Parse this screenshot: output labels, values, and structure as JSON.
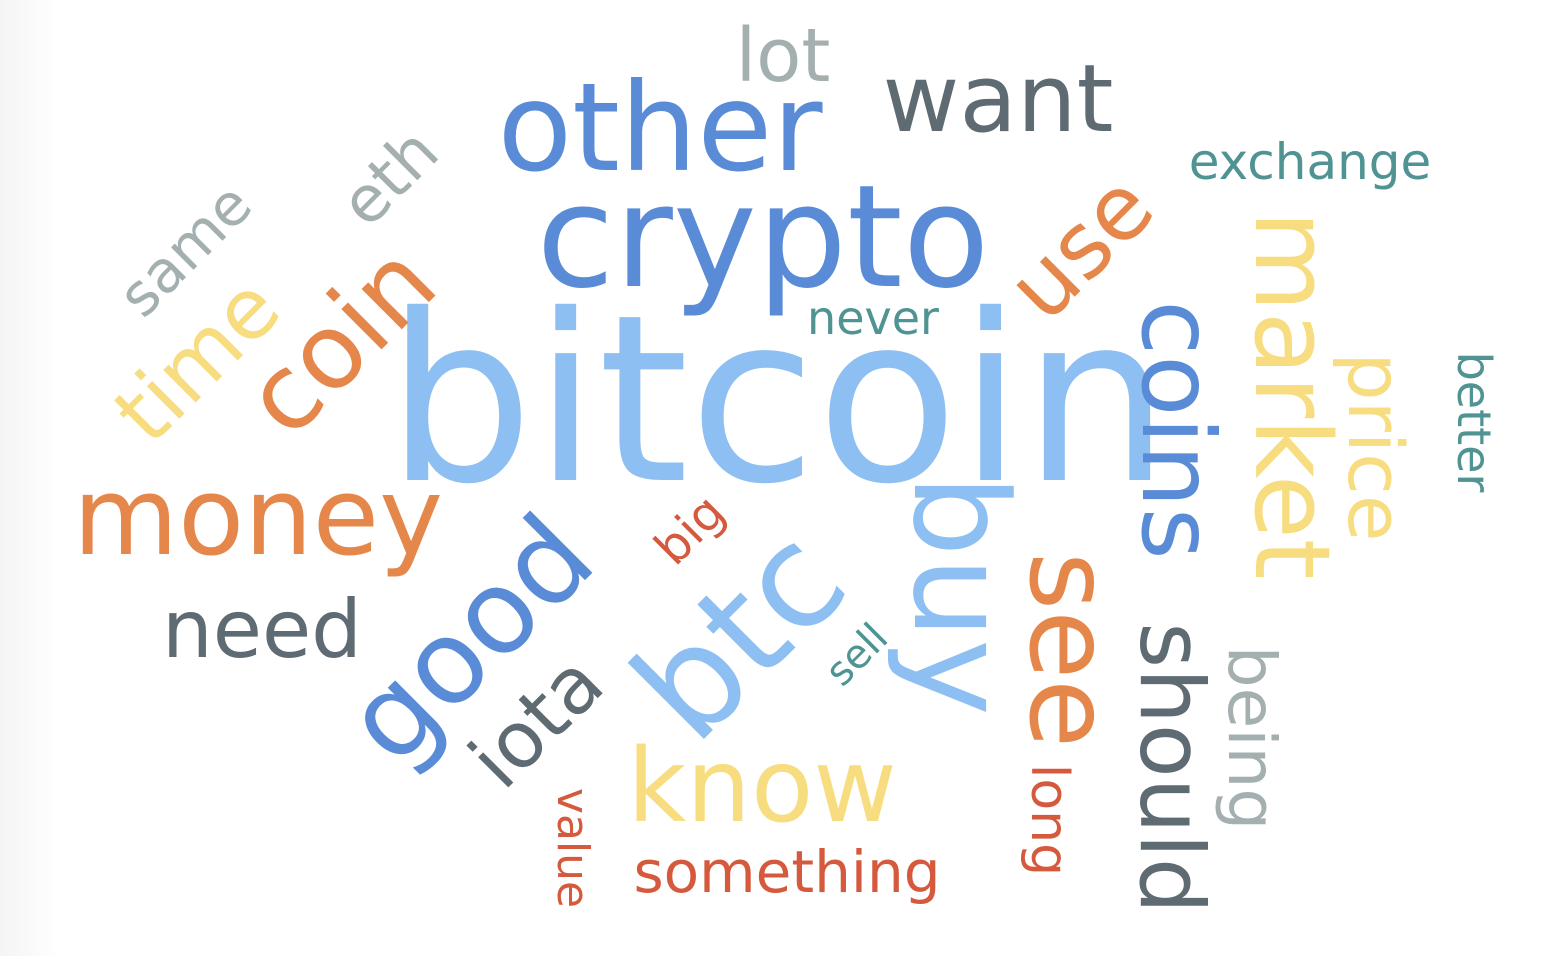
{
  "palette": {
    "light_blue": "#8ebff2",
    "blue": "#5a8bd6",
    "orange": "#e5874a",
    "yellow": "#f7dd7f",
    "slate": "#5f6b72",
    "gray": "#a4b0b0",
    "teal": "#4f9393",
    "red": "#d55a3d"
  },
  "words": [
    {
      "key": "bitcoin",
      "text": "bitcoin",
      "color": "light_blue"
    },
    {
      "key": "crypto",
      "text": "crypto",
      "color": "blue"
    },
    {
      "key": "other",
      "text": "other",
      "color": "blue"
    },
    {
      "key": "want",
      "text": "want",
      "color": "slate"
    },
    {
      "key": "lot",
      "text": "lot",
      "color": "gray"
    },
    {
      "key": "exchange",
      "text": "exchange",
      "color": "teal"
    },
    {
      "key": "money",
      "text": "money",
      "color": "orange"
    },
    {
      "key": "coin",
      "text": "coin",
      "color": "orange"
    },
    {
      "key": "time",
      "text": "time",
      "color": "yellow"
    },
    {
      "key": "same",
      "text": "same",
      "color": "gray"
    },
    {
      "key": "eth",
      "text": "eth",
      "color": "gray"
    },
    {
      "key": "need",
      "text": "need",
      "color": "slate"
    },
    {
      "key": "good",
      "text": "good",
      "color": "blue"
    },
    {
      "key": "iota",
      "text": "iota",
      "color": "slate"
    },
    {
      "key": "btc",
      "text": "btc",
      "color": "light_blue"
    },
    {
      "key": "big",
      "text": "big",
      "color": "red"
    },
    {
      "key": "sell",
      "text": "sell",
      "color": "teal"
    },
    {
      "key": "buy",
      "text": "buy",
      "color": "light_blue"
    },
    {
      "key": "know",
      "text": "know",
      "color": "yellow"
    },
    {
      "key": "something",
      "text": "something",
      "color": "red"
    },
    {
      "key": "value",
      "text": "value",
      "color": "red"
    },
    {
      "key": "never",
      "text": "never",
      "color": "teal"
    },
    {
      "key": "use",
      "text": "use",
      "color": "orange"
    },
    {
      "key": "see",
      "text": "see",
      "color": "orange"
    },
    {
      "key": "long",
      "text": "long",
      "color": "red"
    },
    {
      "key": "coins",
      "text": "coins",
      "color": "blue"
    },
    {
      "key": "should",
      "text": "should",
      "color": "slate"
    },
    {
      "key": "market",
      "text": "market",
      "color": "yellow"
    },
    {
      "key": "being",
      "text": "being",
      "color": "gray"
    },
    {
      "key": "price",
      "text": "price",
      "color": "yellow"
    },
    {
      "key": "better",
      "text": "better",
      "color": "teal"
    }
  ]
}
